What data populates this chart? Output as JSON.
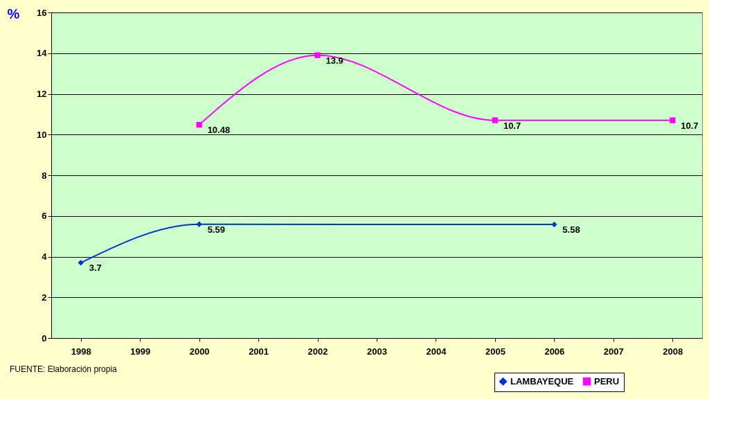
{
  "chart_data": {
    "type": "line",
    "ylabel": "%",
    "categories": [
      "1998",
      "1999",
      "2000",
      "2001",
      "2002",
      "2003",
      "2004",
      "2005",
      "2006",
      "2007",
      "2008"
    ],
    "series": [
      {
        "name": "LAMBAYEQUE",
        "color": "#0033cc",
        "marker": "diamond",
        "values": [
          3.7,
          null,
          5.59,
          null,
          null,
          null,
          null,
          null,
          5.58,
          null,
          null
        ]
      },
      {
        "name": "PERU",
        "color": "#ff00ff",
        "marker": "square",
        "values": [
          null,
          null,
          10.48,
          null,
          13.9,
          null,
          null,
          10.7,
          null,
          null,
          10.7
        ]
      }
    ],
    "ylim": [
      0,
      16
    ],
    "yticks": [
      0,
      2,
      4,
      6,
      8,
      10,
      12,
      14,
      16
    ],
    "grid": "y",
    "legend": "bottom right",
    "data_labels": true,
    "annotations": [
      "FUENTE: Elaboración propia"
    ]
  }
}
